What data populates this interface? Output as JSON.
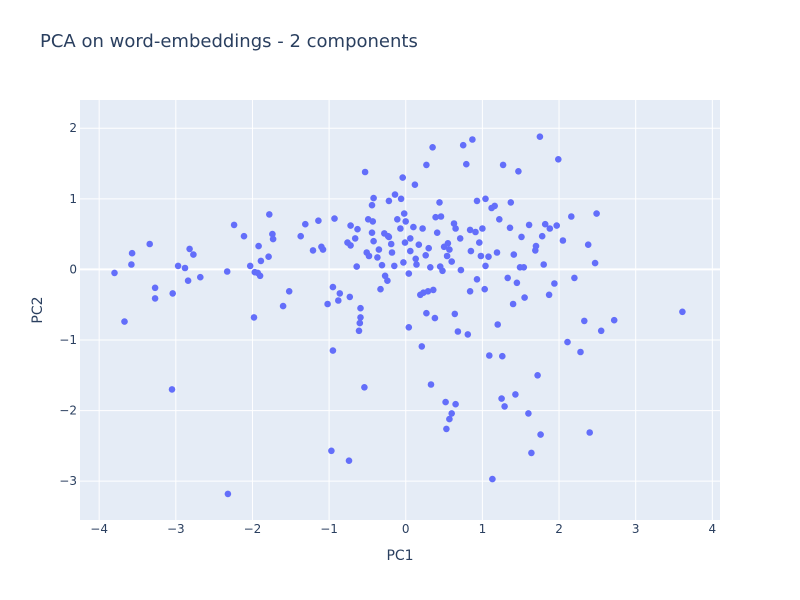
{
  "chart_data": {
    "type": "scatter",
    "title": "PCA on word-embeddings - 2 components",
    "xlabel": "PC1",
    "ylabel": "PC2",
    "xlim": [
      -4.25,
      4.1
    ],
    "ylim": [
      -3.55,
      2.4
    ],
    "xticks": [
      -4,
      -3,
      -2,
      -1,
      0,
      1,
      2,
      3,
      4
    ],
    "yticks": [
      -3,
      -2,
      -1,
      0,
      1,
      2
    ],
    "grid": true,
    "legend": "none",
    "colors": {
      "background": "#e5ecf6",
      "grid": "#ffffff",
      "marker": "#636efa",
      "text": "#2a3f5f"
    },
    "points": [
      [
        -3.8,
        -0.05
      ],
      [
        -3.67,
        -0.74
      ],
      [
        -3.57,
        0.23
      ],
      [
        -3.58,
        0.07
      ],
      [
        -3.34,
        0.36
      ],
      [
        -3.27,
        -0.26
      ],
      [
        -3.27,
        -0.41
      ],
      [
        -3.04,
        -0.34
      ],
      [
        -2.97,
        0.05
      ],
      [
        -2.88,
        0.02
      ],
      [
        -2.82,
        0.29
      ],
      [
        -2.77,
        0.21
      ],
      [
        -2.84,
        -0.16
      ],
      [
        -2.68,
        -0.11
      ],
      [
        -3.05,
        -1.7
      ],
      [
        -2.33,
        -0.03
      ],
      [
        -2.32,
        -3.18
      ],
      [
        -2.24,
        0.63
      ],
      [
        -2.11,
        0.47
      ],
      [
        -1.97,
        -0.04
      ],
      [
        -2.03,
        0.05
      ],
      [
        -1.93,
        -0.05
      ],
      [
        -1.9,
        -0.09
      ],
      [
        -1.92,
        0.33
      ],
      [
        -1.89,
        0.12
      ],
      [
        -1.78,
        0.78
      ],
      [
        -1.79,
        0.18
      ],
      [
        -1.74,
        0.5
      ],
      [
        -1.73,
        0.43
      ],
      [
        -1.6,
        -0.52
      ],
      [
        -1.52,
        -0.31
      ],
      [
        -1.37,
        0.47
      ],
      [
        -1.31,
        0.64
      ],
      [
        -1.21,
        0.27
      ],
      [
        -1.14,
        0.69
      ],
      [
        -1.1,
        0.32
      ],
      [
        -1.08,
        0.28
      ],
      [
        -1.02,
        -0.49
      ],
      [
        -0.93,
        0.72
      ],
      [
        -0.95,
        -0.25
      ],
      [
        -0.86,
        -0.34
      ],
      [
        -0.88,
        -0.44
      ],
      [
        -0.73,
        -0.39
      ],
      [
        -0.72,
        0.34
      ],
      [
        -0.72,
        0.62
      ],
      [
        -0.66,
        0.44
      ],
      [
        -0.64,
        0.04
      ],
      [
        -0.59,
        -0.68
      ],
      [
        -0.6,
        -0.76
      ],
      [
        -0.61,
        -0.87
      ],
      [
        -0.51,
        0.24
      ],
      [
        -0.53,
        1.38
      ],
      [
        -0.49,
        0.71
      ],
      [
        -0.43,
        0.68
      ],
      [
        -0.44,
        0.91
      ],
      [
        -0.42,
        1.01
      ],
      [
        -0.37,
        0.17
      ],
      [
        -0.42,
        0.4
      ],
      [
        -0.35,
        0.28
      ],
      [
        -0.31,
        0.06
      ],
      [
        -0.28,
        0.51
      ],
      [
        -0.27,
        -0.09
      ],
      [
        -0.24,
        -0.16
      ],
      [
        -0.22,
        0.97
      ],
      [
        -0.22,
        0.46
      ],
      [
        -0.19,
        0.36
      ],
      [
        -0.14,
        1.06
      ],
      [
        -0.15,
        0.05
      ],
      [
        -0.11,
        0.71
      ],
      [
        -0.07,
        0.58
      ],
      [
        -0.04,
        1.3
      ],
      [
        -0.03,
        0.1
      ],
      [
        -0.01,
        0.38
      ],
      [
        -0.02,
        0.79
      ],
      [
        0.04,
        -0.82
      ],
      [
        0.06,
        0.26
      ],
      [
        0.12,
        1.2
      ],
      [
        0.1,
        0.6
      ],
      [
        0.17,
        0.35
      ],
      [
        0.19,
        -0.36
      ],
      [
        0.23,
        -0.33
      ],
      [
        0.26,
        0.2
      ],
      [
        0.27,
        1.48
      ],
      [
        0.29,
        -0.31
      ],
      [
        0.32,
        0.03
      ],
      [
        0.35,
        1.73
      ],
      [
        0.38,
        -0.69
      ],
      [
        0.41,
        0.52
      ],
      [
        0.44,
        0.95
      ],
      [
        0.46,
        0.75
      ],
      [
        0.5,
        0.32
      ],
      [
        0.53,
        -2.26
      ],
      [
        0.57,
        0.28
      ],
      [
        0.6,
        0.11
      ],
      [
        0.63,
        0.65
      ],
      [
        0.64,
        -0.63
      ],
      [
        0.68,
        -0.88
      ],
      [
        0.71,
        0.44
      ],
      [
        0.75,
        1.76
      ],
      [
        0.79,
        1.49
      ],
      [
        0.81,
        -0.92
      ],
      [
        0.84,
        0.56
      ],
      [
        0.84,
        -0.31
      ],
      [
        0.87,
        1.84
      ],
      [
        0.91,
        0.53
      ],
      [
        0.93,
        -0.14
      ],
      [
        0.98,
        0.19
      ],
      [
        1.0,
        0.58
      ],
      [
        1.03,
        -0.28
      ],
      [
        1.04,
        1.0
      ],
      [
        1.09,
        -1.22
      ],
      [
        1.13,
        -2.97
      ],
      [
        1.16,
        0.9
      ],
      [
        1.2,
        -0.78
      ],
      [
        1.22,
        0.71
      ],
      [
        1.25,
        -1.83
      ],
      [
        1.27,
        1.48
      ],
      [
        1.29,
        -1.94
      ],
      [
        1.33,
        -0.12
      ],
      [
        1.37,
        0.95
      ],
      [
        1.41,
        0.21
      ],
      [
        1.45,
        -0.19
      ],
      [
        1.47,
        1.39
      ],
      [
        1.49,
        0.03
      ],
      [
        1.55,
        -0.4
      ],
      [
        1.61,
        0.63
      ],
      [
        1.64,
        -2.6
      ],
      [
        1.69,
        0.27
      ],
      [
        1.72,
        -1.5
      ],
      [
        1.75,
        1.88
      ],
      [
        1.78,
        0.47
      ],
      [
        1.82,
        0.64
      ],
      [
        1.88,
        0.58
      ],
      [
        1.99,
        1.56
      ],
      [
        2.05,
        0.41
      ],
      [
        2.11,
        -1.03
      ],
      [
        2.16,
        0.75
      ],
      [
        2.2,
        -0.12
      ],
      [
        2.28,
        -1.17
      ],
      [
        2.33,
        -0.73
      ],
      [
        2.38,
        0.35
      ],
      [
        2.4,
        -2.31
      ],
      [
        2.49,
        0.79
      ],
      [
        2.55,
        -0.87
      ],
      [
        2.72,
        -0.72
      ],
      [
        3.61,
        -0.6
      ],
      [
        0.65,
        -1.91
      ],
      [
        0.6,
        -2.04
      ],
      [
        0.57,
        -2.12
      ],
      [
        0.33,
        -1.63
      ],
      [
        -0.54,
        -1.67
      ],
      [
        -0.95,
        -1.15
      ],
      [
        -0.97,
        -2.57
      ],
      [
        -0.74,
        -2.71
      ],
      [
        -1.98,
        -0.68
      ],
      [
        0.52,
        -1.88
      ],
      [
        1.6,
        -2.04
      ],
      [
        1.76,
        -2.34
      ],
      [
        1.26,
        -1.23
      ],
      [
        1.43,
        -1.77
      ],
      [
        0.21,
        -1.09
      ],
      [
        1.36,
        0.59
      ],
      [
        1.8,
        0.07
      ],
      [
        0.45,
        0.04
      ],
      [
        0.04,
        -0.06
      ],
      [
        -0.48,
        0.19
      ],
      [
        -0.76,
        0.38
      ],
      [
        1.04,
        0.05
      ],
      [
        0.27,
        -0.62
      ],
      [
        0.93,
        0.97
      ],
      [
        1.94,
        -0.2
      ],
      [
        1.51,
        0.46
      ],
      [
        0.72,
        -0.01
      ],
      [
        1.12,
        0.87
      ],
      [
        -0.33,
        -0.28
      ],
      [
        0.85,
        0.26
      ],
      [
        0.13,
        0.15
      ],
      [
        -0.59,
        -0.55
      ],
      [
        1.97,
        0.62
      ],
      [
        2.47,
        0.09
      ],
      [
        1.7,
        0.33
      ],
      [
        0.39,
        0.74
      ],
      [
        0.54,
        0.19
      ],
      [
        1.08,
        0.18
      ],
      [
        0.48,
        -0.02
      ],
      [
        -0.23,
        0.47
      ],
      [
        0.0,
        0.68
      ],
      [
        -0.63,
        0.57
      ],
      [
        -0.06,
        1.0
      ],
      [
        0.14,
        0.07
      ],
      [
        0.65,
        0.58
      ],
      [
        0.96,
        0.38
      ],
      [
        1.54,
        0.03
      ],
      [
        1.87,
        -0.36
      ],
      [
        1.4,
        -0.49
      ],
      [
        0.22,
        0.58
      ],
      [
        0.55,
        0.37
      ],
      [
        0.3,
        0.3
      ],
      [
        0.06,
        0.44
      ],
      [
        -0.18,
        0.24
      ],
      [
        -0.44,
        0.52
      ],
      [
        1.19,
        0.24
      ],
      [
        0.36,
        -0.29
      ]
    ]
  }
}
